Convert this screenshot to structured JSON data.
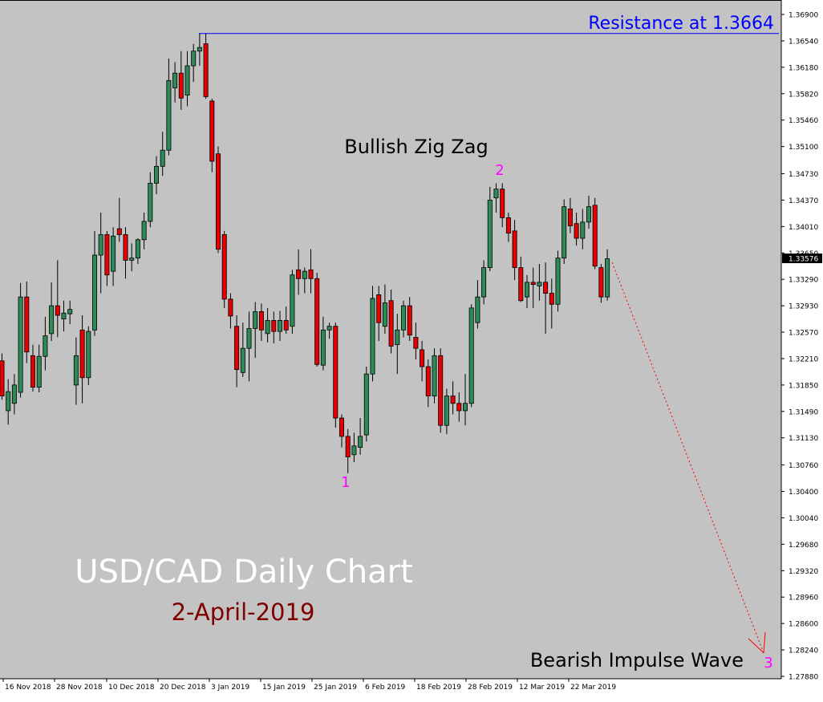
{
  "chart_data": {
    "type": "candlestick",
    "title": "USD/CAD Daily Chart",
    "subtitle": "2-April-2019",
    "price_range": [
      1.2776,
      1.3712
    ],
    "y_ticks": [
      "1.36900",
      "1.36540",
      "1.36180",
      "1.35820",
      "1.35460",
      "1.35100",
      "1.34730",
      "1.34370",
      "1.34010",
      "1.33650",
      "1.33290",
      "1.32930",
      "1.32570",
      "1.32210",
      "1.31850",
      "1.31490",
      "1.31130",
      "1.30760",
      "1.30400",
      "1.30040",
      "1.29680",
      "1.29320",
      "1.28960",
      "1.28600",
      "1.28240",
      "1.27880"
    ],
    "x_labels": [
      "16 Nov 2018",
      "28 Nov 2018",
      "10 Dec 2018",
      "20 Dec 2018",
      "3 Jan 2019",
      "15 Jan 2019",
      "25 Jan 2019",
      "6 Feb 2019",
      "18 Feb 2019",
      "28 Feb 2019",
      "12 Mar 2019",
      "22 Mar 2019"
    ],
    "current_price": "1.33576",
    "resistance": {
      "label": "Resistance at 1.3664",
      "value": 1.3664
    },
    "annotations": [
      {
        "text": "Bullish Zig Zag",
        "type": "pattern"
      },
      {
        "text": "1",
        "type": "wave"
      },
      {
        "text": "2",
        "type": "wave"
      },
      {
        "text": "3",
        "type": "wave"
      },
      {
        "text": "Bearish Impulse Wave",
        "type": "pattern"
      }
    ],
    "projection": {
      "from_price": 1.3352,
      "to_price": 1.282,
      "style": "dashed",
      "color": "#ff0000"
    },
    "candles": [
      {
        "o": 1.3218,
        "h": 1.3228,
        "l": 1.3165,
        "c": 1.317
      },
      {
        "o": 1.315,
        "h": 1.3193,
        "l": 1.3131,
        "c": 1.3176
      },
      {
        "o": 1.316,
        "h": 1.32,
        "l": 1.3145,
        "c": 1.3185
      },
      {
        "o": 1.3175,
        "h": 1.3324,
        "l": 1.3168,
        "c": 1.3305
      },
      {
        "o": 1.3305,
        "h": 1.3326,
        "l": 1.3215,
        "c": 1.323
      },
      {
        "o": 1.3225,
        "h": 1.324,
        "l": 1.3176,
        "c": 1.3182
      },
      {
        "o": 1.3182,
        "h": 1.324,
        "l": 1.3175,
        "c": 1.3224
      },
      {
        "o": 1.3224,
        "h": 1.3278,
        "l": 1.3205,
        "c": 1.3252
      },
      {
        "o": 1.3255,
        "h": 1.3325,
        "l": 1.3245,
        "c": 1.3293
      },
      {
        "o": 1.3293,
        "h": 1.3355,
        "l": 1.325,
        "c": 1.328
      },
      {
        "o": 1.3275,
        "h": 1.33,
        "l": 1.3258,
        "c": 1.3283
      },
      {
        "o": 1.3282,
        "h": 1.33,
        "l": 1.3268,
        "c": 1.3288
      },
      {
        "o": 1.3185,
        "h": 1.325,
        "l": 1.3158,
        "c": 1.3225
      },
      {
        "o": 1.326,
        "h": 1.328,
        "l": 1.316,
        "c": 1.3195
      },
      {
        "o": 1.3195,
        "h": 1.3265,
        "l": 1.3185,
        "c": 1.3258
      },
      {
        "o": 1.326,
        "h": 1.3395,
        "l": 1.3252,
        "c": 1.3362
      },
      {
        "o": 1.3362,
        "h": 1.342,
        "l": 1.331,
        "c": 1.339
      },
      {
        "o": 1.339,
        "h": 1.3395,
        "l": 1.332,
        "c": 1.3335
      },
      {
        "o": 1.334,
        "h": 1.34,
        "l": 1.332,
        "c": 1.3388
      },
      {
        "o": 1.3398,
        "h": 1.344,
        "l": 1.338,
        "c": 1.339
      },
      {
        "o": 1.339,
        "h": 1.34,
        "l": 1.333,
        "c": 1.3355
      },
      {
        "o": 1.3355,
        "h": 1.3378,
        "l": 1.334,
        "c": 1.3358
      },
      {
        "o": 1.3358,
        "h": 1.3385,
        "l": 1.335,
        "c": 1.3383
      },
      {
        "o": 1.3383,
        "h": 1.342,
        "l": 1.337,
        "c": 1.3408
      },
      {
        "o": 1.3408,
        "h": 1.3475,
        "l": 1.34,
        "c": 1.346
      },
      {
        "o": 1.346,
        "h": 1.3497,
        "l": 1.3445,
        "c": 1.3483
      },
      {
        "o": 1.3483,
        "h": 1.353,
        "l": 1.347,
        "c": 1.3505
      },
      {
        "o": 1.3505,
        "h": 1.363,
        "l": 1.3498,
        "c": 1.36
      },
      {
        "o": 1.359,
        "h": 1.3625,
        "l": 1.357,
        "c": 1.361
      },
      {
        "o": 1.361,
        "h": 1.364,
        "l": 1.356,
        "c": 1.3576
      },
      {
        "o": 1.358,
        "h": 1.364,
        "l": 1.3565,
        "c": 1.362
      },
      {
        "o": 1.362,
        "h": 1.365,
        "l": 1.3598,
        "c": 1.364
      },
      {
        "o": 1.364,
        "h": 1.3664,
        "l": 1.362,
        "c": 1.3645
      },
      {
        "o": 1.365,
        "h": 1.3664,
        "l": 1.3575,
        "c": 1.3578
      },
      {
        "o": 1.3572,
        "h": 1.3575,
        "l": 1.3475,
        "c": 1.349
      },
      {
        "o": 1.35,
        "h": 1.351,
        "l": 1.3365,
        "c": 1.337
      },
      {
        "o": 1.339,
        "h": 1.3395,
        "l": 1.329,
        "c": 1.3302
      },
      {
        "o": 1.3302,
        "h": 1.331,
        "l": 1.3262,
        "c": 1.3279
      },
      {
        "o": 1.3265,
        "h": 1.328,
        "l": 1.3182,
        "c": 1.3206
      },
      {
        "o": 1.3202,
        "h": 1.327,
        "l": 1.3196,
        "c": 1.3235
      },
      {
        "o": 1.3235,
        "h": 1.3285,
        "l": 1.319,
        "c": 1.3262
      },
      {
        "o": 1.3262,
        "h": 1.3298,
        "l": 1.3222,
        "c": 1.3285
      },
      {
        "o": 1.3285,
        "h": 1.3296,
        "l": 1.3245,
        "c": 1.326
      },
      {
        "o": 1.3255,
        "h": 1.329,
        "l": 1.3243,
        "c": 1.3273
      },
      {
        "o": 1.3273,
        "h": 1.3285,
        "l": 1.3242,
        "c": 1.3258
      },
      {
        "o": 1.3258,
        "h": 1.3286,
        "l": 1.3245,
        "c": 1.3273
      },
      {
        "o": 1.3273,
        "h": 1.3292,
        "l": 1.3255,
        "c": 1.326
      },
      {
        "o": 1.3265,
        "h": 1.3342,
        "l": 1.3255,
        "c": 1.3335
      },
      {
        "o": 1.3342,
        "h": 1.337,
        "l": 1.3308,
        "c": 1.333
      },
      {
        "o": 1.333,
        "h": 1.3345,
        "l": 1.331,
        "c": 1.334
      },
      {
        "o": 1.3342,
        "h": 1.337,
        "l": 1.331,
        "c": 1.333
      },
      {
        "o": 1.333,
        "h": 1.3338,
        "l": 1.321,
        "c": 1.3213
      },
      {
        "o": 1.3212,
        "h": 1.3278,
        "l": 1.3205,
        "c": 1.326
      },
      {
        "o": 1.326,
        "h": 1.327,
        "l": 1.3248,
        "c": 1.3265
      },
      {
        "o": 1.3265,
        "h": 1.327,
        "l": 1.3127,
        "c": 1.314
      },
      {
        "o": 1.314,
        "h": 1.3145,
        "l": 1.31,
        "c": 1.3115
      },
      {
        "o": 1.3115,
        "h": 1.3125,
        "l": 1.3065,
        "c": 1.3087
      },
      {
        "o": 1.309,
        "h": 1.312,
        "l": 1.308,
        "c": 1.3102
      },
      {
        "o": 1.31,
        "h": 1.314,
        "l": 1.309,
        "c": 1.3115
      },
      {
        "o": 1.3117,
        "h": 1.321,
        "l": 1.3108,
        "c": 1.32
      },
      {
        "o": 1.32,
        "h": 1.332,
        "l": 1.319,
        "c": 1.3303
      },
      {
        "o": 1.3308,
        "h": 1.332,
        "l": 1.3245,
        "c": 1.327
      },
      {
        "o": 1.3265,
        "h": 1.3322,
        "l": 1.3255,
        "c": 1.3297
      },
      {
        "o": 1.33,
        "h": 1.3315,
        "l": 1.3228,
        "c": 1.3238
      },
      {
        "o": 1.324,
        "h": 1.3282,
        "l": 1.32,
        "c": 1.326
      },
      {
        "o": 1.326,
        "h": 1.33,
        "l": 1.325,
        "c": 1.3293
      },
      {
        "o": 1.3293,
        "h": 1.3305,
        "l": 1.3245,
        "c": 1.3253
      },
      {
        "o": 1.325,
        "h": 1.327,
        "l": 1.322,
        "c": 1.3235
      },
      {
        "o": 1.3233,
        "h": 1.3245,
        "l": 1.319,
        "c": 1.321
      },
      {
        "o": 1.321,
        "h": 1.322,
        "l": 1.3155,
        "c": 1.317
      },
      {
        "o": 1.317,
        "h": 1.3235,
        "l": 1.316,
        "c": 1.3225
      },
      {
        "o": 1.3225,
        "h": 1.3235,
        "l": 1.312,
        "c": 1.313
      },
      {
        "o": 1.313,
        "h": 1.318,
        "l": 1.3118,
        "c": 1.317
      },
      {
        "o": 1.317,
        "h": 1.319,
        "l": 1.3145,
        "c": 1.316
      },
      {
        "o": 1.316,
        "h": 1.3175,
        "l": 1.3135,
        "c": 1.315
      },
      {
        "o": 1.315,
        "h": 1.32,
        "l": 1.313,
        "c": 1.316
      },
      {
        "o": 1.316,
        "h": 1.3295,
        "l": 1.3155,
        "c": 1.329
      },
      {
        "o": 1.327,
        "h": 1.3328,
        "l": 1.3262,
        "c": 1.3305
      },
      {
        "o": 1.3305,
        "h": 1.3355,
        "l": 1.3295,
        "c": 1.3345
      },
      {
        "o": 1.3345,
        "h": 1.3455,
        "l": 1.334,
        "c": 1.3437
      },
      {
        "o": 1.344,
        "h": 1.346,
        "l": 1.342,
        "c": 1.3452
      },
      {
        "o": 1.3452,
        "h": 1.346,
        "l": 1.34,
        "c": 1.3413
      },
      {
        "o": 1.3413,
        "h": 1.342,
        "l": 1.338,
        "c": 1.3392
      },
      {
        "o": 1.3395,
        "h": 1.341,
        "l": 1.3328,
        "c": 1.3345
      },
      {
        "o": 1.3345,
        "h": 1.336,
        "l": 1.3298,
        "c": 1.33
      },
      {
        "o": 1.3305,
        "h": 1.3335,
        "l": 1.329,
        "c": 1.3325
      },
      {
        "o": 1.3325,
        "h": 1.3345,
        "l": 1.329,
        "c": 1.3322
      },
      {
        "o": 1.332,
        "h": 1.335,
        "l": 1.33,
        "c": 1.3325
      },
      {
        "o": 1.3325,
        "h": 1.3352,
        "l": 1.3255,
        "c": 1.331
      },
      {
        "o": 1.331,
        "h": 1.333,
        "l": 1.3262,
        "c": 1.3295
      },
      {
        "o": 1.3295,
        "h": 1.3368,
        "l": 1.3285,
        "c": 1.3358
      },
      {
        "o": 1.3358,
        "h": 1.3438,
        "l": 1.335,
        "c": 1.3428
      },
      {
        "o": 1.3425,
        "h": 1.344,
        "l": 1.3392,
        "c": 1.3402
      },
      {
        "o": 1.3405,
        "h": 1.342,
        "l": 1.3375,
        "c": 1.3385
      },
      {
        "o": 1.3385,
        "h": 1.3425,
        "l": 1.337,
        "c": 1.3407
      },
      {
        "o": 1.3407,
        "h": 1.3443,
        "l": 1.3398,
        "c": 1.3428
      },
      {
        "o": 1.343,
        "h": 1.344,
        "l": 1.3343,
        "c": 1.3347
      },
      {
        "o": 1.3345,
        "h": 1.335,
        "l": 1.3297,
        "c": 1.3305
      },
      {
        "o": 1.3305,
        "h": 1.337,
        "l": 1.33,
        "c": 1.3357
      }
    ]
  }
}
